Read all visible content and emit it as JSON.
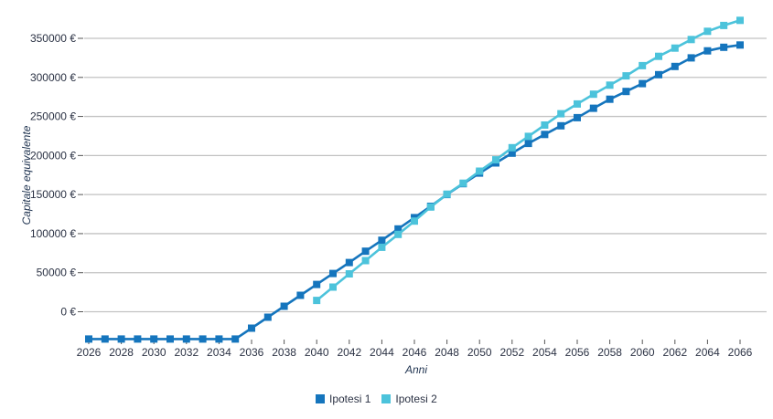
{
  "chart_data": {
    "type": "line",
    "title": "",
    "xlabel": "Anni",
    "ylabel": "Capitale equivalente",
    "currency_suffix": "€",
    "x_ticks": [
      2026,
      2028,
      2030,
      2032,
      2034,
      2036,
      2038,
      2040,
      2042,
      2044,
      2046,
      2048,
      2050,
      2052,
      2054,
      2056,
      2058,
      2060,
      2062,
      2064,
      2066
    ],
    "y_ticks": [
      0,
      50000,
      100000,
      150000,
      200000,
      250000,
      300000,
      350000
    ],
    "xlim": [
      2026,
      2066
    ],
    "ylim": [
      -50000,
      400000
    ],
    "grid": true,
    "legend_position": "bottom-center",
    "colors": {
      "series1": "#1575bd",
      "series2": "#4cc3db",
      "gridline": "#c2c2c2",
      "tick": "#555555",
      "tick_label": "#2b3244",
      "axis_title": "#1f3350"
    },
    "series": [
      {
        "name": "Ipotesi 1",
        "color": "#1575bd",
        "start_year": 2026,
        "values": [
          -35000,
          -35000,
          -35000,
          -35000,
          -35000,
          -35000,
          -35000,
          -35000,
          -35000,
          -35000,
          -21000,
          -7000,
          7000,
          21000,
          35000,
          49000,
          63000,
          77500,
          91500,
          106000,
          120500,
          135000,
          150000,
          164000,
          177500,
          190500,
          203000,
          215500,
          227000,
          238000,
          248500,
          260500,
          272000,
          282000,
          292000,
          303500,
          314000,
          325000,
          334000,
          338500,
          341500
        ]
      },
      {
        "name": "Ipotesi 2",
        "color": "#4cc3db",
        "start_year": 2040,
        "values": [
          14500,
          31500,
          48500,
          65500,
          82500,
          99000,
          116000,
          134000,
          150500,
          164500,
          180000,
          194500,
          210000,
          224500,
          239000,
          253500,
          266000,
          278500,
          290000,
          302000,
          315000,
          327000,
          337500,
          348500,
          359000,
          366500,
          373000
        ]
      }
    ]
  }
}
